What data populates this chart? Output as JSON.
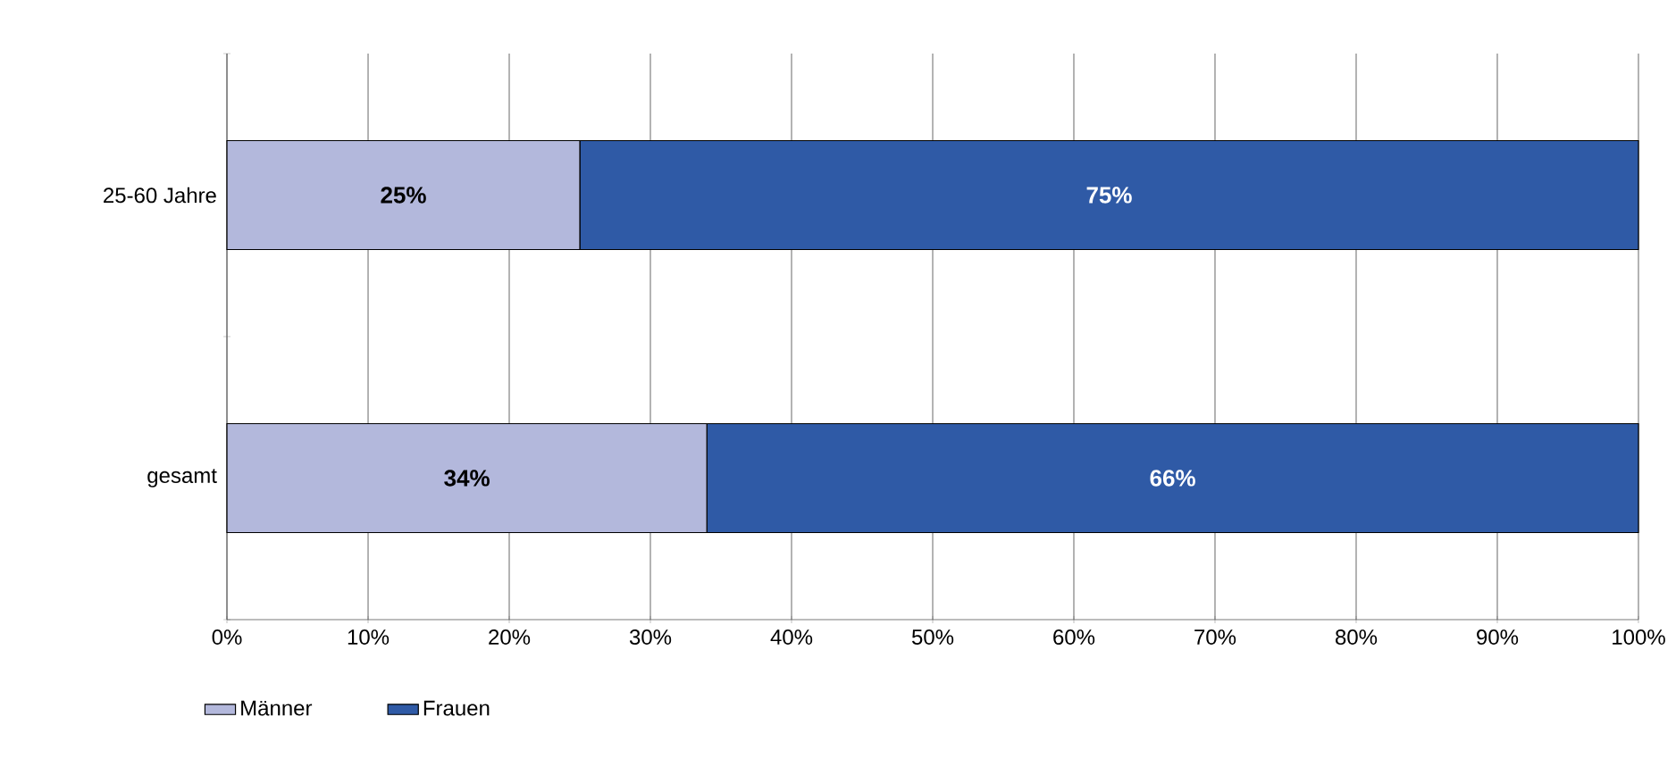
{
  "chart_data": {
    "type": "bar",
    "orientation": "horizontal",
    "stacked": true,
    "categories": [
      "25-60 Jahre",
      "gesamt"
    ],
    "series": [
      {
        "name": "Männer",
        "color": "#b3b8dc",
        "values": [
          25,
          34
        ],
        "value_labels": [
          "25%",
          "34%"
        ]
      },
      {
        "name": "Frauen",
        "color": "#2f5aa6",
        "values": [
          75,
          66
        ],
        "value_labels": [
          "75%",
          "66%"
        ]
      }
    ],
    "xlim": [
      0,
      100
    ],
    "xticks": [
      {
        "value": 0,
        "label": "0%"
      },
      {
        "value": 10,
        "label": "10%"
      },
      {
        "value": 20,
        "label": "20%"
      },
      {
        "value": 30,
        "label": "30%"
      },
      {
        "value": 40,
        "label": "40%"
      },
      {
        "value": 50,
        "label": "50%"
      },
      {
        "value": 60,
        "label": "60%"
      },
      {
        "value": 70,
        "label": "70%"
      },
      {
        "value": 80,
        "label": "80%"
      },
      {
        "value": 90,
        "label": "90%"
      },
      {
        "value": 100,
        "label": "100%"
      }
    ],
    "grid": "x",
    "legend": "bottom left"
  }
}
